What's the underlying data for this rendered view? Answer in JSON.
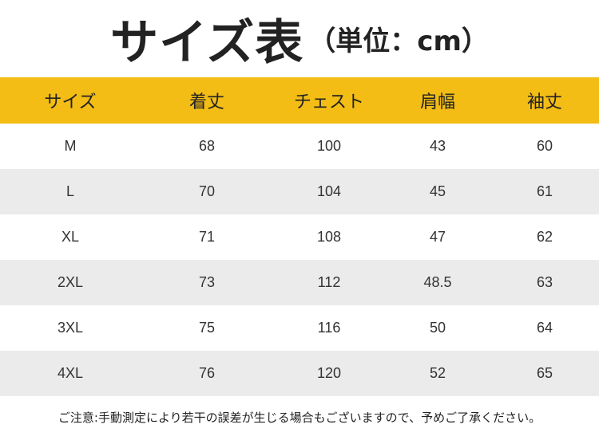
{
  "title": {
    "main": "サイズ表",
    "unit": "（単位：cm）"
  },
  "table": {
    "headers": [
      "サイズ",
      "着丈",
      "チェスト",
      "肩幅",
      "袖丈"
    ],
    "rows": [
      [
        "M",
        "68",
        "100",
        "43",
        "60"
      ],
      [
        "L",
        "70",
        "104",
        "45",
        "61"
      ],
      [
        "XL",
        "71",
        "108",
        "47",
        "62"
      ],
      [
        "2XL",
        "73",
        "112",
        "48.5",
        "63"
      ],
      [
        "3XL",
        "75",
        "116",
        "50",
        "64"
      ],
      [
        "4XL",
        "76",
        "120",
        "52",
        "65"
      ]
    ]
  },
  "note": "ご注意:手動測定により若干の誤差が生じる場合もございますので、予めご了承ください。",
  "colors": {
    "header_background": "#f3bd15",
    "stripe_background": "#ebebeb"
  }
}
